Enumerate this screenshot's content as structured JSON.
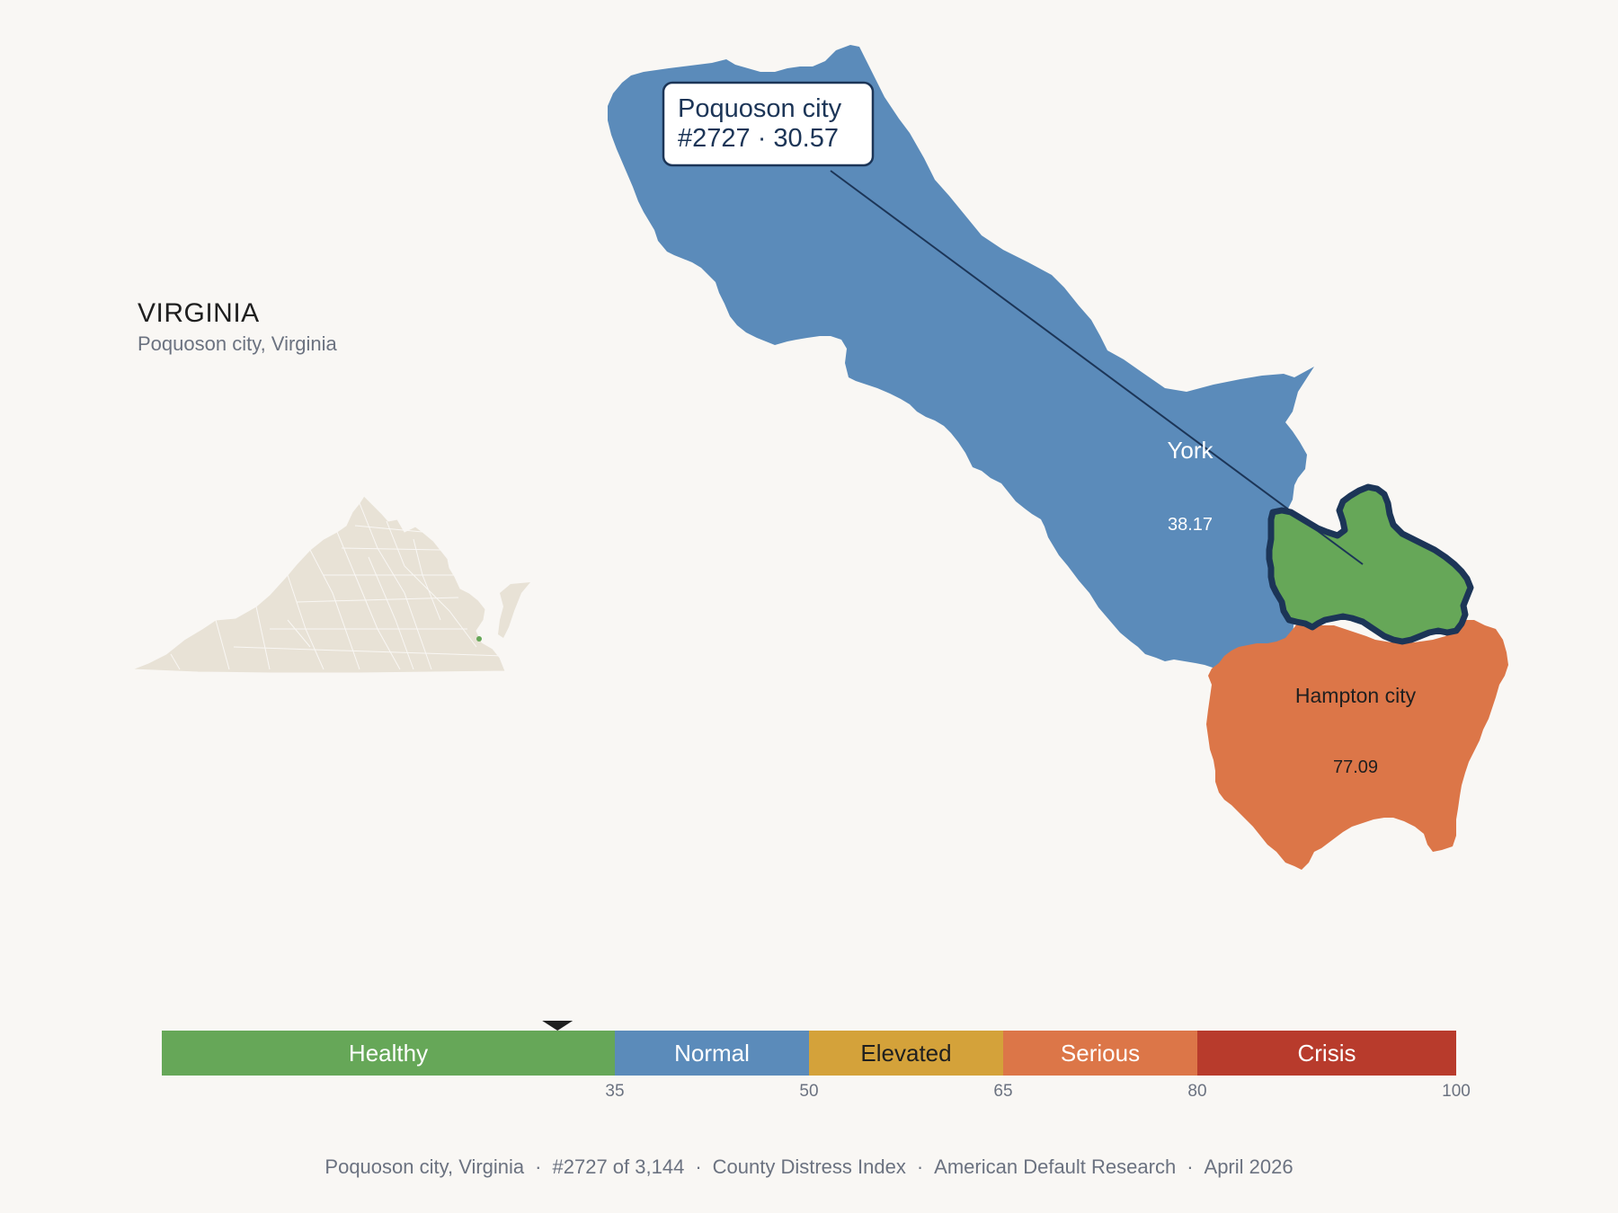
{
  "state": {
    "title": "VIRGINIA",
    "subtitle": "Poquoson city, Virginia"
  },
  "callout": {
    "line1": "Poquoson city",
    "line2": "#2727 · 30.57"
  },
  "counties": [
    {
      "name": "York",
      "value": "38.17",
      "color": "#5b8bba"
    },
    {
      "name": "Poquoson city",
      "value": "30.57",
      "color": "#66a758",
      "highlighted": true
    },
    {
      "name": "Hampton city",
      "value": "77.09",
      "color": "#dc7648"
    }
  ],
  "scale": {
    "min": 0,
    "max": 100,
    "marker_value": 30.57,
    "bands": [
      {
        "label": "Healthy",
        "from": 0,
        "to": 35,
        "color": "#66a758",
        "text_color": "#ffffff"
      },
      {
        "label": "Normal",
        "from": 35,
        "to": 50,
        "color": "#5b8bba",
        "text_color": "#ffffff"
      },
      {
        "label": "Elevated",
        "from": 50,
        "to": 65,
        "color": "#d4a23a",
        "text_color": "#1f1f1f"
      },
      {
        "label": "Serious",
        "from": 65,
        "to": 80,
        "color": "#dc7648",
        "text_color": "#ffffff"
      },
      {
        "label": "Crisis",
        "from": 80,
        "to": 100,
        "color": "#b83b2c",
        "text_color": "#ffffff"
      }
    ],
    "ticks": [
      "35",
      "50",
      "65",
      "80",
      "100"
    ]
  },
  "footer": {
    "place": "Poquoson city, Virginia",
    "rank": "#2727 of 3,144",
    "index": "County Distress Index",
    "org": "American Default Research",
    "date": "April 2026",
    "sep": "·"
  }
}
